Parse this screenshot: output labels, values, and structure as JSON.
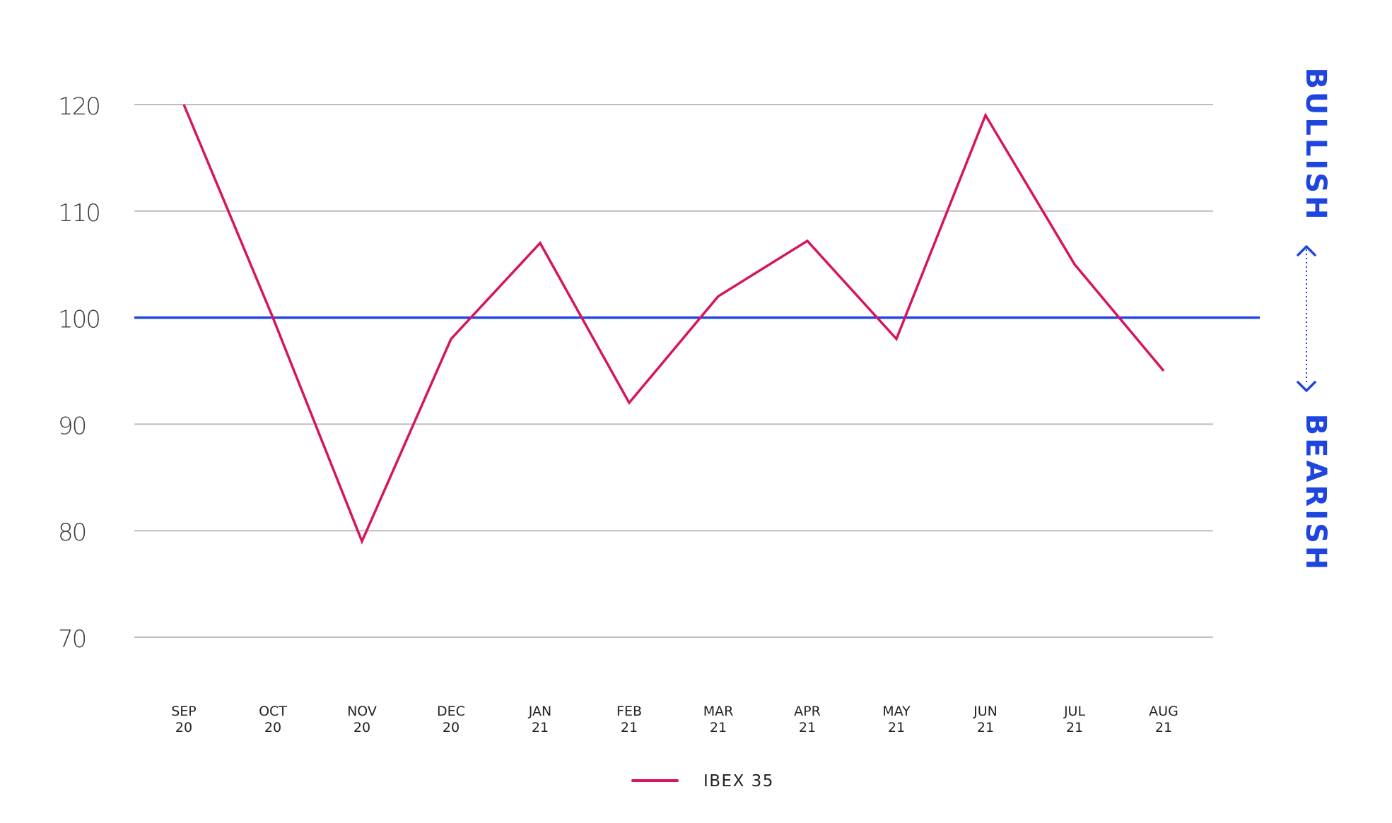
{
  "chart_data": {
    "type": "line",
    "categories": [
      "SEP 20",
      "OCT 20",
      "NOV 20",
      "DEC 20",
      "JAN 21",
      "FEB 21",
      "MAR 21",
      "APR 21",
      "MAY 21",
      "JUN 21",
      "JUL 21",
      "AUG 21"
    ],
    "x_tick_labels": [
      [
        "SEP",
        "20"
      ],
      [
        "OCT",
        "20"
      ],
      [
        "NOV",
        "20"
      ],
      [
        "DEC",
        "20"
      ],
      [
        "JAN",
        "21"
      ],
      [
        "FEB",
        "21"
      ],
      [
        "MAR",
        "21"
      ],
      [
        "APR",
        "21"
      ],
      [
        "MAY",
        "21"
      ],
      [
        "JUN",
        "21"
      ],
      [
        "JUL",
        "21"
      ],
      [
        "AUG",
        "21"
      ]
    ],
    "series": [
      {
        "name": "IBEX 35",
        "color": "#d6145f",
        "values": [
          120,
          100,
          79,
          98,
          107,
          92,
          102,
          107.2,
          98,
          119,
          105,
          95
        ]
      }
    ],
    "reference_line": {
      "value": 100,
      "color": "#1f45e0"
    },
    "y_ticks": [
      120,
      110,
      100,
      90,
      80,
      70
    ],
    "ylim": [
      70,
      120
    ],
    "grid": true,
    "legend_position": "bottom-center",
    "side_labels": {
      "top": "BULLISH",
      "bottom": "BEARISH"
    },
    "side_label_color": "#1f45e0"
  }
}
